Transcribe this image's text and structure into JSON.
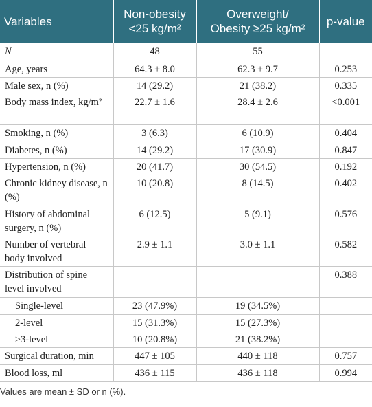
{
  "table": {
    "header": [
      [
        "Variables"
      ],
      [
        "Non-obesity",
        "<25 kg/m²"
      ],
      [
        "Overweight/",
        "Obesity ≥25 kg/m²"
      ],
      [
        "p-value"
      ]
    ],
    "rows": [
      [
        "N",
        "48",
        "55",
        null
      ],
      [
        "Age, years",
        "64.3 ± 8.0",
        "62.3 ± 9.7",
        "0.253"
      ],
      [
        "Male sex, n (%)",
        "14 (29.2)",
        "21 (38.2)",
        "0.335"
      ],
      [
        "Body mass index, kg/m²",
        "22.7 ± 1.6",
        "28.4 ± 2.6",
        "<0.001"
      ],
      [
        "Smoking, n (%)",
        "3 (6.3)",
        "6 (10.9)",
        "0.404"
      ],
      [
        "Diabetes, n (%)",
        "14 (29.2)",
        "17 (30.9)",
        "0.847"
      ],
      [
        "Hypertension, n (%)",
        "20 (41.7)",
        "30 (54.5)",
        "0.192"
      ],
      [
        "Chronic kidney disease, n (%)",
        "10 (20.8)",
        "8 (14.5)",
        "0.402"
      ],
      [
        "History of abdominal surgery, n (%)",
        "6 (12.5)",
        "5 (9.1)",
        "0.576"
      ],
      [
        "Number of vertebral body involved",
        "2.9 ± 1.1",
        "3.0 ± 1.1",
        "0.582"
      ],
      [
        "Distribution of spine level involved",
        null,
        null,
        "0.388"
      ],
      [
        "Single-level",
        "23 (47.9%)",
        "19 (34.5%)",
        null
      ],
      [
        "2-level",
        "15 (31.3%)",
        "15 (27.3%)",
        null
      ],
      [
        "≥3-level",
        "10 (20.8%)",
        "21 (38.2%)",
        null
      ],
      [
        "Surgical duration, min",
        "447 ± 105",
        "440 ± 118",
        "0.757"
      ],
      [
        "Blood loss, ml",
        "436 ± 115",
        "436 ± 118",
        "0.994"
      ]
    ],
    "footnote": "Values are mean ± SD or n (%)."
  }
}
